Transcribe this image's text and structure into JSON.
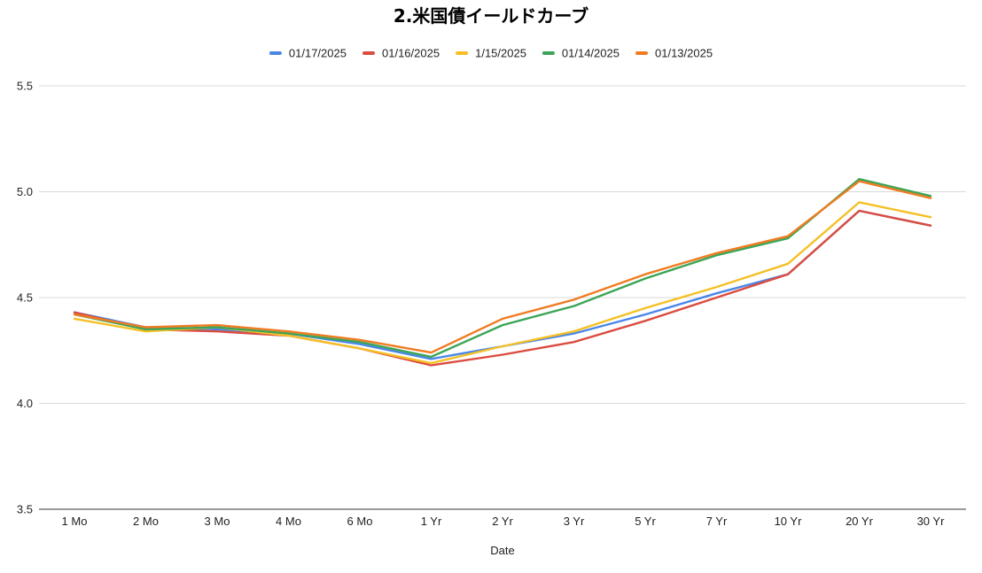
{
  "chart_data": {
    "type": "line",
    "title": "2.米国債イールドカーブ",
    "xlabel": "Date",
    "ylabel": "",
    "categories": [
      "1 Mo",
      "2 Mo",
      "3 Mo",
      "4 Mo",
      "6 Mo",
      "1 Yr",
      "2 Yr",
      "3 Yr",
      "5 Yr",
      "7 Yr",
      "10 Yr",
      "20 Yr",
      "30 Yr"
    ],
    "ylim": [
      3.5,
      5.5
    ],
    "yticks": [
      "3.5",
      "4.0",
      "4.5",
      "5.0",
      "5.5"
    ],
    "grid": true,
    "legend_position": "top",
    "series": [
      {
        "name": "01/17/2025",
        "color": "#4a86e8",
        "values": [
          4.43,
          4.36,
          4.35,
          4.33,
          4.28,
          4.21,
          4.27,
          4.33,
          4.42,
          4.52,
          4.61,
          4.91,
          4.84
        ]
      },
      {
        "name": "01/16/2025",
        "color": "#db4c40",
        "values": [
          4.43,
          4.35,
          4.34,
          4.32,
          4.26,
          4.18,
          4.23,
          4.29,
          4.39,
          4.5,
          4.61,
          4.91,
          4.84
        ]
      },
      {
        "name": "1/15/2025",
        "color": "#f5c026",
        "values": [
          4.4,
          4.34,
          4.36,
          4.32,
          4.26,
          4.19,
          4.27,
          4.34,
          4.45,
          4.55,
          4.66,
          4.95,
          4.88
        ]
      },
      {
        "name": "01/14/2025",
        "color": "#3ca557",
        "values": [
          4.42,
          4.35,
          4.36,
          4.33,
          4.29,
          4.22,
          4.37,
          4.46,
          4.59,
          4.7,
          4.78,
          5.06,
          4.98
        ]
      },
      {
        "name": "01/13/2025",
        "color": "#f07b22",
        "values": [
          4.42,
          4.36,
          4.37,
          4.34,
          4.3,
          4.24,
          4.4,
          4.49,
          4.61,
          4.71,
          4.79,
          5.05,
          4.97
        ]
      }
    ]
  }
}
